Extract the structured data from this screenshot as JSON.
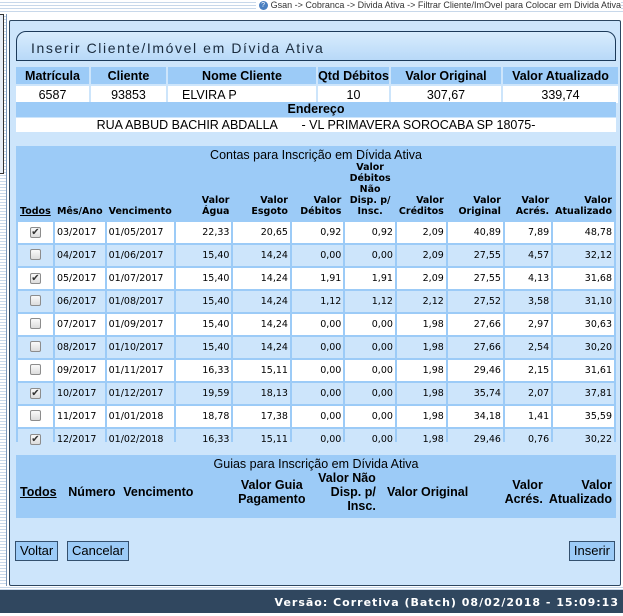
{
  "breadcrumb": "Gsan -> Cobranca -> Divida Ativa -> Filtrar Cliente/ImOvel para Colocar em Divida Ativa",
  "page_title": "Inserir Cliente/Imóvel em Dívida Ativa",
  "info": {
    "headers": [
      "Matrícula",
      "Cliente",
      "Nome Cliente",
      "Qtd Débitos",
      "Valor Original",
      "Valor Atualizado"
    ],
    "values": [
      "6587",
      "93853",
      "ELVIRA P",
      "10",
      "307,67",
      "339,74"
    ],
    "address_label": "Endereço",
    "address": "RUA ABBUD BACHIR ABDALLA       - VL PRIMAVERA SOROCABA SP 18075-"
  },
  "contas": {
    "title": "Contas para Inscrição em Dívida Ativa",
    "headers": [
      "Todos",
      "Mês/Ano",
      "Vencimento",
      "Valor Água",
      "Valor Esgoto",
      "Valor Débitos",
      "Valor Débitos Não Disp. p/ Insc.",
      "Valor Créditos",
      "Valor Original",
      "Valor Acrés.",
      "Valor Atualizado"
    ],
    "rows": [
      {
        "checked": true,
        "cells": [
          "03/2017",
          "01/05/2017",
          "22,33",
          "20,65",
          "0,92",
          "0,92",
          "2,09",
          "40,89",
          "7,89",
          "48,78"
        ]
      },
      {
        "checked": false,
        "cells": [
          "04/2017",
          "01/06/2017",
          "15,40",
          "14,24",
          "0,00",
          "0,00",
          "2,09",
          "27,55",
          "4,57",
          "32,12"
        ]
      },
      {
        "checked": true,
        "cells": [
          "05/2017",
          "01/07/2017",
          "15,40",
          "14,24",
          "1,91",
          "1,91",
          "2,09",
          "27,55",
          "4,13",
          "31,68"
        ]
      },
      {
        "checked": false,
        "cells": [
          "06/2017",
          "01/08/2017",
          "15,40",
          "14,24",
          "1,12",
          "1,12",
          "2,12",
          "27,52",
          "3,58",
          "31,10"
        ]
      },
      {
        "checked": false,
        "cells": [
          "07/2017",
          "01/09/2017",
          "15,40",
          "14,24",
          "0,00",
          "0,00",
          "1,98",
          "27,66",
          "2,97",
          "30,63"
        ]
      },
      {
        "checked": false,
        "cells": [
          "08/2017",
          "01/10/2017",
          "15,40",
          "14,24",
          "0,00",
          "0,00",
          "1,98",
          "27,66",
          "2,54",
          "30,20"
        ]
      },
      {
        "checked": false,
        "cells": [
          "09/2017",
          "01/11/2017",
          "16,33",
          "15,11",
          "0,00",
          "0,00",
          "1,98",
          "29,46",
          "2,15",
          "31,61"
        ]
      },
      {
        "checked": true,
        "cells": [
          "10/2017",
          "01/12/2017",
          "19,59",
          "18,13",
          "0,00",
          "0,00",
          "1,98",
          "35,74",
          "2,07",
          "37,81"
        ]
      },
      {
        "checked": false,
        "cells": [
          "11/2017",
          "01/01/2018",
          "18,78",
          "17,38",
          "0,00",
          "0,00",
          "1,98",
          "34,18",
          "1,41",
          "35,59"
        ]
      },
      {
        "checked": true,
        "cells": [
          "12/2017",
          "01/02/2018",
          "16,33",
          "15,11",
          "0,00",
          "0,00",
          "1,98",
          "29,46",
          "0,76",
          "30,22"
        ]
      }
    ]
  },
  "guias": {
    "title": "Guias para Inscrição em Dívida Ativa",
    "headers": [
      "Todos",
      "Número",
      "Vencimento",
      "Valor Guia Pagamento",
      "Valor Não Disp. p/ Insc.",
      "Valor Original",
      "Valor Acrés.",
      "Valor Atualizado"
    ]
  },
  "buttons": {
    "back": "Voltar",
    "cancel": "Cancelar",
    "insert": "Inserir"
  },
  "footer": "Versão: Corretiva (Batch) 08/02/2018 - 15:09:13"
}
